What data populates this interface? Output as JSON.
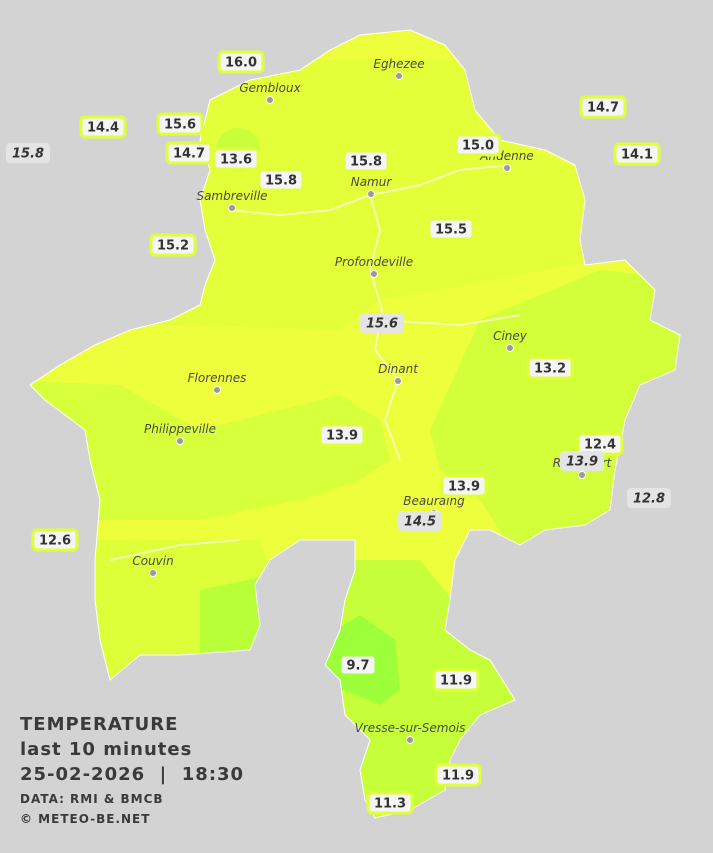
{
  "legend": {
    "title": "TEMPERATURE",
    "subtitle": "last 10 minutes",
    "datetime": "25-02-2026  |  18:30",
    "source": "DATA: RMI & BMCB",
    "credit": "© METEO-BE.NET"
  },
  "cities": [
    "Eghezee",
    "Gembloux",
    "Andenne",
    "Namur",
    "Sambreville",
    "Profondeville",
    "Ciney",
    "Dinant",
    "Florennes",
    "Philippeville",
    "Rochefort",
    "Beauraing",
    "Couvin",
    "Vresse-sur-Semois"
  ],
  "stations": [
    {
      "value": "16.0"
    },
    {
      "value": "14.4"
    },
    {
      "value": "15.6"
    },
    {
      "value": "15.8",
      "style": "italic"
    },
    {
      "value": "14.7"
    },
    {
      "value": "13.6"
    },
    {
      "value": "15.8"
    },
    {
      "value": "15.8"
    },
    {
      "value": "15.0"
    },
    {
      "value": "14.7"
    },
    {
      "value": "14.1"
    },
    {
      "value": "15.2"
    },
    {
      "value": "15.5"
    },
    {
      "value": "15.6",
      "style": "italic"
    },
    {
      "value": "13.2"
    },
    {
      "value": "13.9"
    },
    {
      "value": "12.4"
    },
    {
      "value": "13.9",
      "style": "italic"
    },
    {
      "value": "12.8",
      "style": "italic"
    },
    {
      "value": "13.9"
    },
    {
      "value": "14.5",
      "style": "italic"
    },
    {
      "value": "12.6"
    },
    {
      "value": "9.7",
      "style": "green"
    },
    {
      "value": "11.9"
    },
    {
      "value": "11.9"
    },
    {
      "value": "11.3"
    }
  ]
}
